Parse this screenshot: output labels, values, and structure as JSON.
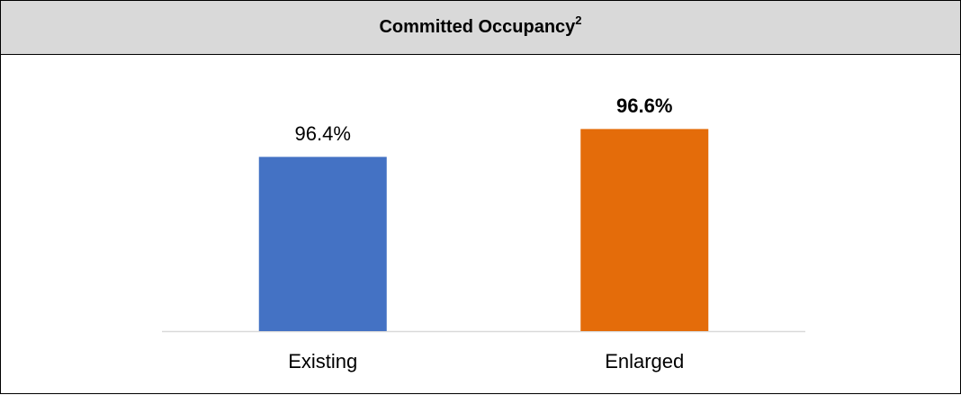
{
  "chart_data": {
    "type": "bar",
    "title": "Committed Occupancy",
    "title_superscript": "2",
    "categories": [
      "Existing",
      "Enlarged"
    ],
    "values": [
      96.4,
      96.6
    ],
    "value_labels": [
      "96.4%",
      "96.6%"
    ],
    "value_label_bold": [
      false,
      true
    ],
    "colors": [
      "#4472c4",
      "#e46c0a"
    ],
    "ylim": [
      95.15,
      96.88
    ]
  }
}
